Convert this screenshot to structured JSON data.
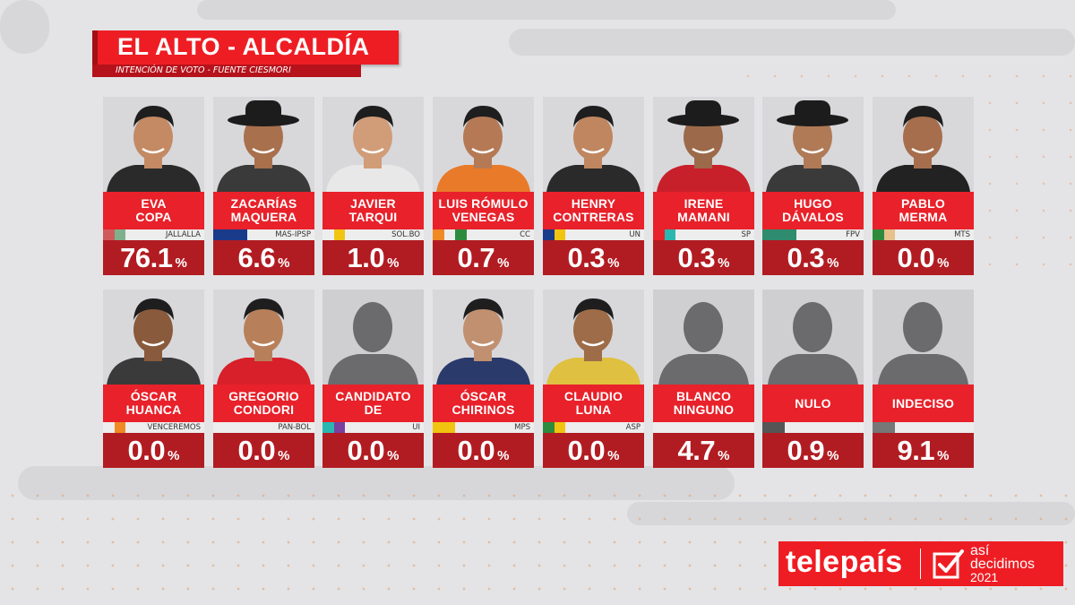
{
  "header": {
    "title": "EL ALTO - ALCALDÍA",
    "subtitle": "INTENCIÓN DE VOTO - FUENTE CIESMORI"
  },
  "brand": {
    "name": "telepaís",
    "slogan_line1": "así",
    "slogan_line2": "decidimos",
    "slogan_year": "2021",
    "accent_color": "#ee1d23"
  },
  "chart_data": {
    "type": "bar",
    "unit": "%",
    "categories": [
      "EVA COPA",
      "ZACARÍAS MAQUERA",
      "JAVIER TARQUI",
      "LUIS RÓMULO VENEGAS",
      "HENRY CONTRERAS",
      "IRENE MAMANI",
      "HUGO DÁVALOS",
      "PABLO MERMA",
      "ÓSCAR HUANCA",
      "GREGORIO CONDORI",
      "CANDIDATO DE",
      "ÓSCAR CHIRINOS",
      "CLAUDIO LUNA",
      "BLANCO NINGUNO",
      "NULO",
      "INDECISO"
    ],
    "values": [
      76.1,
      6.6,
      1.0,
      0.7,
      0.3,
      0.3,
      0.3,
      0.0,
      0.0,
      0.0,
      0.0,
      0.0,
      0.0,
      4.7,
      0.9,
      9.1
    ]
  },
  "cards": [
    {
      "line1": "EVA",
      "line2": "COPA",
      "party": "JALLALLA",
      "pct": "76.1",
      "sign": "%",
      "flag": [
        "#d05a5a",
        "#7fb08c",
        "#ededed"
      ],
      "photo": "person"
    },
    {
      "line1": "ZACARÍAS",
      "line2": "MAQUERA",
      "party": "MAS-IPSP",
      "pct": "6.6",
      "sign": "%",
      "flag": [
        "#1a3a8a",
        "#1a3a8a",
        "#1a3a8a"
      ],
      "photo": "person-hat"
    },
    {
      "line1": "JAVIER",
      "line2": "TARQUI",
      "party": "SOL.BO",
      "pct": "1.0",
      "sign": "%",
      "flag": [
        "#ededed",
        "#f1c40f",
        "#ededed"
      ],
      "photo": "person"
    },
    {
      "line1": "LUIS RÓMULO",
      "line2": "VENEGAS",
      "party": "CC",
      "pct": "0.7",
      "sign": "%",
      "flag": [
        "#f08a24",
        "#ededed",
        "#2e8b3e"
      ],
      "photo": "person"
    },
    {
      "line1": "HENRY",
      "line2": "CONTRERAS",
      "party": "UN",
      "pct": "0.3",
      "sign": "%",
      "flag": [
        "#1a3a8a",
        "#f1c40f",
        "#ededed"
      ],
      "photo": "person"
    },
    {
      "line1": "IRENE",
      "line2": "MAMANI",
      "party": "SP",
      "pct": "0.3",
      "sign": "%",
      "flag": [
        "#e8212a",
        "#2ab7b0",
        "#ededed"
      ],
      "photo": "person-hat"
    },
    {
      "line1": "HUGO",
      "line2": "DÁVALOS",
      "party": "FPV",
      "pct": "0.3",
      "sign": "%",
      "flag": [
        "#2e8b6e",
        "#2e8b6e",
        "#2e8b6e"
      ],
      "photo": "person-hat"
    },
    {
      "line1": "PABLO",
      "line2": "MERMA",
      "party": "MTS",
      "pct": "0.0",
      "sign": "%",
      "flag": [
        "#2e8b3e",
        "#e8c08a",
        "#ededed"
      ],
      "photo": "person"
    },
    {
      "line1": "ÓSCAR",
      "line2": "HUANCA",
      "party": "VENCEREMOS",
      "pct": "0.0",
      "sign": "%",
      "flag": [
        "#ededed",
        "#f08a24",
        "#ededed"
      ],
      "photo": "person"
    },
    {
      "line1": "GREGORIO",
      "line2": "CONDORI",
      "party": "PAN-BOL",
      "pct": "0.0",
      "sign": "%",
      "flag": [
        "#ededed",
        "#ededed",
        "#ededed"
      ],
      "photo": "person"
    },
    {
      "line1": "CANDIDATO",
      "line2": "DE",
      "party": "UI",
      "pct": "0.0",
      "sign": "%",
      "flag": [
        "#2ab7b0",
        "#7b3fa0",
        "#ededed"
      ],
      "photo": "silhouette"
    },
    {
      "line1": "ÓSCAR",
      "line2": "CHIRINOS",
      "party": "MPS",
      "pct": "0.0",
      "sign": "%",
      "flag": [
        "#f1c40f",
        "#f1c40f",
        "#ededed"
      ],
      "photo": "person"
    },
    {
      "line1": "CLAUDIO",
      "line2": "LUNA",
      "party": "ASP",
      "pct": "0.0",
      "sign": "%",
      "flag": [
        "#2e8b3e",
        "#f1c40f",
        "#ededed"
      ],
      "photo": "person"
    },
    {
      "line1": "BLANCO",
      "line2": "NINGUNO",
      "party": "",
      "pct": "4.7",
      "sign": "%",
      "flag": [
        "#ededed",
        "#ededed",
        "#ededed"
      ],
      "photo": "silhouette"
    },
    {
      "line1": "NULO",
      "line2": "",
      "party": "",
      "pct": "0.9",
      "sign": "%",
      "flag": [
        "#555555",
        "#555555",
        "#ededed"
      ],
      "photo": "silhouette"
    },
    {
      "line1": "INDECISO",
      "line2": "",
      "party": "",
      "pct": "9.1",
      "sign": "%",
      "flag": [
        "#777777",
        "#777777",
        "#ededed"
      ],
      "photo": "silhouette"
    }
  ]
}
